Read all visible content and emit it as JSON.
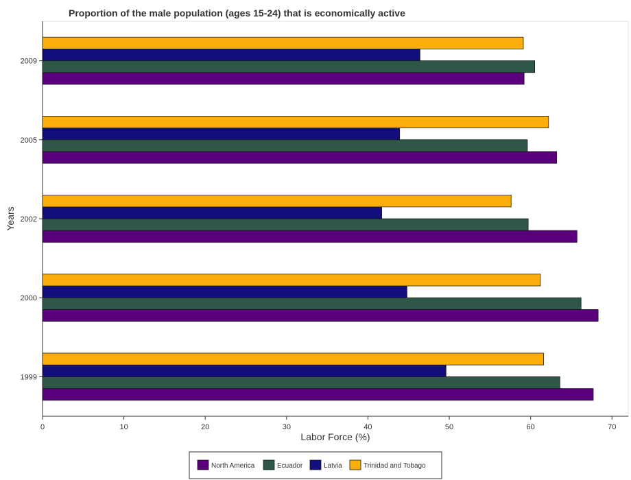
{
  "chart_data": {
    "type": "bar",
    "orientation": "horizontal",
    "title": "Proportion of the male population (ages 15-24) that is economically active",
    "xlabel": "Labor Force (%)",
    "ylabel": "Years",
    "categories": [
      "1999",
      "2000",
      "2002",
      "2005",
      "2009"
    ],
    "xlim": [
      0,
      72
    ],
    "xticks": [
      0,
      10,
      20,
      30,
      40,
      50,
      60,
      70
    ],
    "grid": false,
    "legend_position": "bottom-center",
    "series": [
      {
        "name": "North America",
        "color": "#5a007d",
        "values": [
          67.7,
          68.3,
          65.7,
          63.2,
          59.2
        ]
      },
      {
        "name": "Ecuador",
        "color": "#2f5748",
        "values": [
          63.6,
          66.2,
          59.7,
          59.6,
          60.5
        ]
      },
      {
        "name": "Latvia",
        "color": "#120f7c",
        "values": [
          49.6,
          44.8,
          41.7,
          43.9,
          46.4
        ]
      },
      {
        "name": "Trinidad and Tobago",
        "color": "#fcae0c",
        "values": [
          61.6,
          61.2,
          57.6,
          62.2,
          59.1
        ]
      }
    ]
  }
}
